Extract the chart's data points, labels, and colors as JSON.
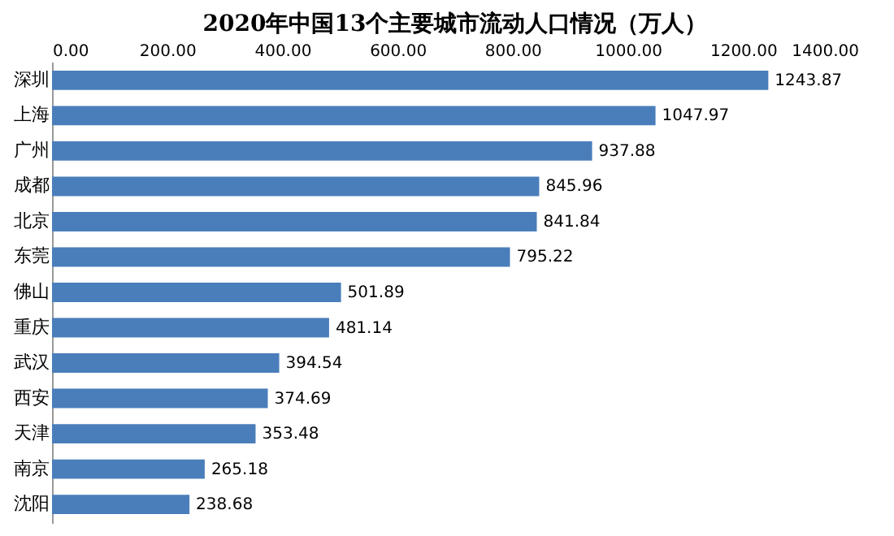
{
  "chart_data": {
    "type": "bar",
    "orientation": "horizontal",
    "title": "2020年中国13个主要城市流动人口情况（万人）",
    "categories": [
      "深圳",
      "上海",
      "广州",
      "成都",
      "北京",
      "东莞",
      "佛山",
      "重庆",
      "武汉",
      "西安",
      "天津",
      "南京",
      "沈阳"
    ],
    "values": [
      1243.87,
      1047.97,
      937.88,
      845.96,
      841.84,
      795.22,
      501.89,
      481.14,
      394.54,
      374.69,
      353.48,
      265.18,
      238.68
    ],
    "color": "#4a7ebb",
    "xlim": [
      0,
      1400
    ],
    "xticks": [
      {
        "value": 0,
        "label": "0.00"
      },
      {
        "value": 200,
        "label": "200.00"
      },
      {
        "value": 400,
        "label": "400.00"
      },
      {
        "value": 600,
        "label": "600.00"
      },
      {
        "value": 800,
        "label": "800.00"
      },
      {
        "value": 1000,
        "label": "1000.00"
      },
      {
        "value": 1200,
        "label": "1200.00"
      },
      {
        "value": 1400,
        "label": "1400.00"
      }
    ],
    "data_labels": true,
    "grid": false
  }
}
